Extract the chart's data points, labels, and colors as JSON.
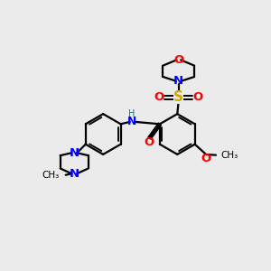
{
  "background_color": "#ebebeb",
  "bond_color": "#000000",
  "N_color": "#0000ff",
  "O_color": "#ff0000",
  "S_color": "#ccaa00",
  "lw": 1.6,
  "lw_thin": 1.2,
  "figsize": [
    3.0,
    3.0
  ],
  "dpi": 100,
  "xlim": [
    0,
    10
  ],
  "ylim": [
    0,
    10
  ]
}
